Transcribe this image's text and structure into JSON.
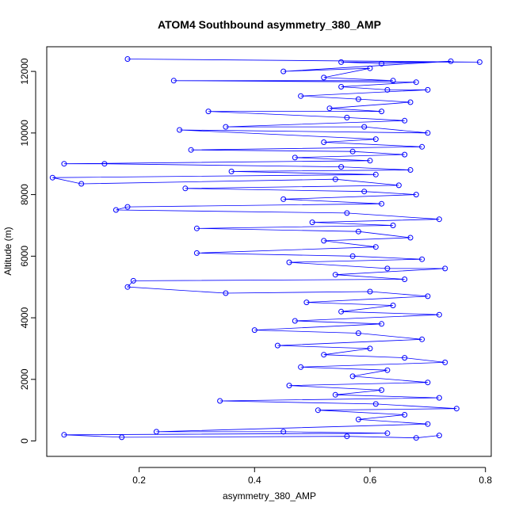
{
  "chart_data": {
    "type": "scatter",
    "title": "ATOM4 Southbound asymmetry_380_AMP",
    "xlabel": "asymmetry_380_AMP",
    "ylabel": "Altitude (m)",
    "xlim": [
      0.04,
      0.81
    ],
    "ylim": [
      -500,
      12800
    ],
    "x_ticks": [
      0.2,
      0.4,
      0.6,
      0.8
    ],
    "x_tick_labels": [
      "0.2",
      "0.4",
      "0.6",
      "0.8"
    ],
    "y_ticks": [
      0,
      2000,
      4000,
      6000,
      8000,
      10000,
      12000
    ],
    "y_tick_labels": [
      "0",
      "2000",
      "4000",
      "6000",
      "8000",
      "10000",
      "12000"
    ],
    "grid": false,
    "series": [
      {
        "color": "#0000ff",
        "marker": "open-circle",
        "connected": true,
        "points": [
          [
            0.18,
            12400
          ],
          [
            0.79,
            12300
          ],
          [
            0.55,
            12300
          ],
          [
            0.62,
            12250
          ],
          [
            0.74,
            12330
          ],
          [
            0.45,
            12000
          ],
          [
            0.6,
            12100
          ],
          [
            0.52,
            11800
          ],
          [
            0.64,
            11700
          ],
          [
            0.26,
            11700
          ],
          [
            0.68,
            11650
          ],
          [
            0.55,
            11500
          ],
          [
            0.63,
            11400
          ],
          [
            0.7,
            11400
          ],
          [
            0.48,
            11200
          ],
          [
            0.58,
            11100
          ],
          [
            0.67,
            11000
          ],
          [
            0.53,
            10800
          ],
          [
            0.62,
            10700
          ],
          [
            0.32,
            10700
          ],
          [
            0.56,
            10500
          ],
          [
            0.66,
            10400
          ],
          [
            0.35,
            10200
          ],
          [
            0.59,
            10200
          ],
          [
            0.7,
            10000
          ],
          [
            0.27,
            10100
          ],
          [
            0.61,
            9800
          ],
          [
            0.52,
            9700
          ],
          [
            0.69,
            9550
          ],
          [
            0.29,
            9450
          ],
          [
            0.57,
            9400
          ],
          [
            0.66,
            9300
          ],
          [
            0.47,
            9200
          ],
          [
            0.6,
            9100
          ],
          [
            0.07,
            9000
          ],
          [
            0.14,
            9000
          ],
          [
            0.55,
            8900
          ],
          [
            0.67,
            8800
          ],
          [
            0.36,
            8750
          ],
          [
            0.61,
            8650
          ],
          [
            0.05,
            8550
          ],
          [
            0.1,
            8350
          ],
          [
            0.54,
            8500
          ],
          [
            0.65,
            8300
          ],
          [
            0.28,
            8200
          ],
          [
            0.59,
            8100
          ],
          [
            0.68,
            8000
          ],
          [
            0.45,
            7850
          ],
          [
            0.62,
            7700
          ],
          [
            0.18,
            7600
          ],
          [
            0.16,
            7500
          ],
          [
            0.56,
            7400
          ],
          [
            0.72,
            7200
          ],
          [
            0.5,
            7100
          ],
          [
            0.64,
            7000
          ],
          [
            0.3,
            6900
          ],
          [
            0.58,
            6800
          ],
          [
            0.67,
            6600
          ],
          [
            0.52,
            6500
          ],
          [
            0.61,
            6300
          ],
          [
            0.3,
            6100
          ],
          [
            0.57,
            6000
          ],
          [
            0.69,
            5900
          ],
          [
            0.46,
            5800
          ],
          [
            0.63,
            5600
          ],
          [
            0.73,
            5600
          ],
          [
            0.54,
            5400
          ],
          [
            0.66,
            5250
          ],
          [
            0.19,
            5200
          ],
          [
            0.18,
            5000
          ],
          [
            0.35,
            4800
          ],
          [
            0.6,
            4850
          ],
          [
            0.7,
            4700
          ],
          [
            0.49,
            4500
          ],
          [
            0.64,
            4400
          ],
          [
            0.55,
            4200
          ],
          [
            0.72,
            4100
          ],
          [
            0.47,
            3900
          ],
          [
            0.62,
            3800
          ],
          [
            0.4,
            3600
          ],
          [
            0.58,
            3500
          ],
          [
            0.69,
            3300
          ],
          [
            0.44,
            3100
          ],
          [
            0.6,
            3000
          ],
          [
            0.52,
            2800
          ],
          [
            0.66,
            2700
          ],
          [
            0.73,
            2550
          ],
          [
            0.48,
            2400
          ],
          [
            0.63,
            2300
          ],
          [
            0.57,
            2100
          ],
          [
            0.7,
            1900
          ],
          [
            0.46,
            1800
          ],
          [
            0.62,
            1650
          ],
          [
            0.54,
            1500
          ],
          [
            0.72,
            1400
          ],
          [
            0.34,
            1300
          ],
          [
            0.61,
            1200
          ],
          [
            0.75,
            1050
          ],
          [
            0.51,
            1000
          ],
          [
            0.66,
            850
          ],
          [
            0.58,
            700
          ],
          [
            0.7,
            550
          ],
          [
            0.23,
            300
          ],
          [
            0.45,
            300
          ],
          [
            0.63,
            250
          ],
          [
            0.07,
            200
          ],
          [
            0.17,
            120
          ],
          [
            0.56,
            150
          ],
          [
            0.68,
            100
          ],
          [
            0.72,
            180
          ]
        ]
      }
    ]
  }
}
